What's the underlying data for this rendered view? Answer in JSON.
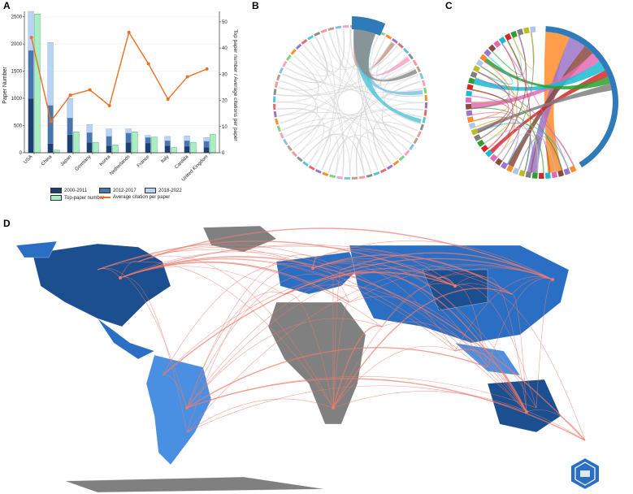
{
  "panels": {
    "a": "A",
    "b": "B",
    "c": "C",
    "d": "D"
  },
  "chart_data": [
    {
      "type": "bar",
      "panel": "A",
      "categories": [
        "USA",
        "China",
        "Japan",
        "Germany",
        "Korea",
        "Netherlands",
        "France",
        "Italy",
        "Canada",
        "United Kingdom"
      ],
      "ylabel": "Paper Number",
      "y2label": "Top paper number / Average citations per paper",
      "ylim": [
        0,
        2600
      ],
      "y2lim": [
        0,
        54
      ],
      "yticks": [
        0,
        500,
        1000,
        1500,
        2000,
        2500
      ],
      "y2ticks": [
        0,
        10,
        20,
        30,
        40,
        50
      ],
      "stacked_series": [
        {
          "name": "2000-2011",
          "color": "#1f3f6e",
          "values": [
            1000,
            170,
            330,
            190,
            130,
            190,
            180,
            130,
            120,
            100
          ]
        },
        {
          "name": "2012-2017",
          "color": "#4a76b0",
          "values": [
            880,
            700,
            310,
            180,
            170,
            170,
            100,
            90,
            100,
            110
          ]
        },
        {
          "name": "2018-2022",
          "color": "#b9d3f7",
          "values": [
            720,
            1160,
            360,
            150,
            140,
            80,
            40,
            80,
            90,
            70
          ]
        }
      ],
      "top_paper_series": {
        "name": "Top-paper number",
        "color": "#a7efc0",
        "axis": "right",
        "values": [
          53,
          1,
          8,
          4,
          3,
          8,
          6,
          2,
          4,
          7
        ]
      },
      "line_series": {
        "name": "Average citation per paper",
        "color": "#ef6f22",
        "axis": "right",
        "values": [
          44,
          12,
          22,
          24,
          18,
          46,
          34,
          20.5,
          29,
          32
        ]
      },
      "legend_position": "bottom"
    }
  ],
  "chord_b": {
    "top_segment_color": "#2f7ab8",
    "accent_colors": [
      "#f59a9a",
      "#c79a8d",
      "#7ec4e8",
      "#f3a3c8",
      "#7ed27e",
      "#ff8c2a",
      "#9b74c9",
      "#e66b6b",
      "#57c6d9",
      "#8d8d8d"
    ]
  },
  "chord_c": {
    "main_color": "#2f7ab8",
    "accent_colors": [
      "#ff8c2a",
      "#9b74c9",
      "#8b4a3a",
      "#e16bb3",
      "#18bcd1",
      "#d62728",
      "#2ca02c",
      "#7f7f7f",
      "#bcbd22",
      "#aec7e8"
    ]
  },
  "map": {
    "ocean": "#ffffff",
    "land_gray": "#808080",
    "land_dark": "#1b4f8f",
    "land_mid": "#2a6fc4",
    "land_light": "#4a90e2",
    "link_color": "#f07a6e"
  }
}
